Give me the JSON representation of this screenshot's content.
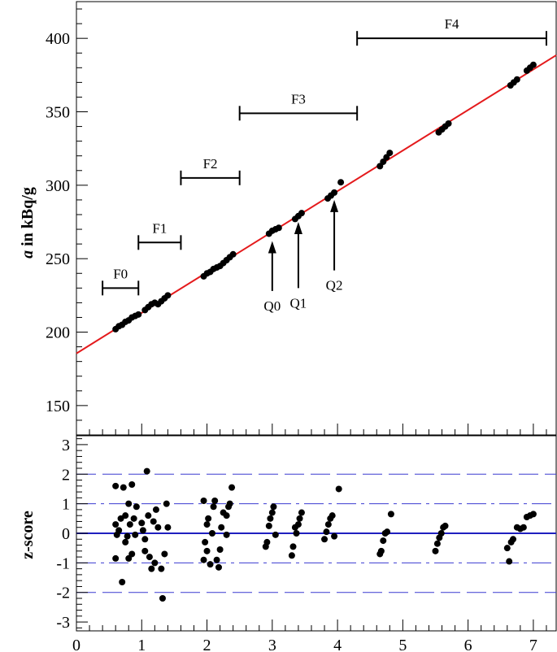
{
  "chart_data": [
    {
      "type": "scatter",
      "ylabel_italic": "a",
      "ylabel_rest": " in kBq/g",
      "xlim": [
        0,
        7.35
      ],
      "ylim": [
        130,
        425
      ],
      "yticks": [
        150,
        200,
        250,
        300,
        350,
        400
      ],
      "grid": false,
      "fit_line": {
        "color": "#e41a1c",
        "x": [
          0,
          7.35
        ],
        "y": [
          185.5,
          388.5
        ]
      },
      "ranges": [
        {
          "label": "F0",
          "x": [
            0.4,
            0.95
          ],
          "y": 230
        },
        {
          "label": "F1",
          "x": [
            0.95,
            1.6
          ],
          "y": 261
        },
        {
          "label": "F2",
          "x": [
            1.6,
            2.5
          ],
          "y": 305
        },
        {
          "label": "F3",
          "x": [
            2.5,
            4.3
          ],
          "y": 349
        },
        {
          "label": "F4",
          "x": [
            4.3,
            7.2
          ],
          "y": 400
        }
      ],
      "arrows": [
        {
          "label": "Q0",
          "x": 3.0,
          "y_tip": 262,
          "y_tail": 228
        },
        {
          "label": "Q1",
          "x": 3.4,
          "y_tip": 275,
          "y_tail": 230
        },
        {
          "label": "Q2",
          "x": 3.95,
          "y_tip": 290,
          "y_tail": 242
        }
      ],
      "points": {
        "x": [
          0.6,
          0.65,
          0.7,
          0.75,
          0.8,
          0.85,
          0.9,
          0.95,
          1.05,
          1.1,
          1.15,
          1.2,
          1.25,
          1.3,
          1.35,
          1.4,
          1.95,
          2.0,
          2.05,
          2.1,
          2.15,
          2.2,
          2.25,
          2.3,
          2.35,
          2.4,
          2.95,
          3.0,
          3.05,
          3.1,
          3.35,
          3.4,
          3.45,
          3.85,
          3.9,
          3.95,
          4.05,
          4.65,
          4.7,
          4.75,
          4.8,
          5.55,
          5.6,
          5.65,
          5.7,
          6.65,
          6.7,
          6.75,
          6.9,
          6.95,
          7.0
        ],
        "y": [
          202,
          204,
          205,
          207,
          208,
          210,
          211,
          212,
          215,
          217,
          219,
          220,
          219,
          221,
          223,
          225,
          238,
          240,
          241,
          243,
          244,
          245,
          247,
          249,
          251,
          253,
          267,
          269,
          270,
          271,
          277,
          279,
          281,
          291,
          293,
          295,
          302,
          313,
          316,
          319,
          322,
          336,
          338,
          340,
          342,
          368,
          370,
          372,
          378,
          380,
          382
        ]
      }
    },
    {
      "type": "scatter",
      "ylabel": "z-score",
      "xlim": [
        0,
        7.35
      ],
      "ylim": [
        -3.3,
        3.3
      ],
      "xticks": [
        0,
        1,
        2,
        3,
        4,
        5,
        6,
        7
      ],
      "yticks": [
        -3,
        -2,
        -1,
        0,
        1,
        2,
        3
      ],
      "reference_lines": [
        {
          "y": 0,
          "style": "solid",
          "color": "#1f1fbf"
        },
        {
          "y": 1,
          "style": "dashdot",
          "color": "#3a3ad0"
        },
        {
          "y": -1,
          "style": "dashdot",
          "color": "#3a3ad0"
        },
        {
          "y": 2,
          "style": "dashed",
          "color": "#3a3ad0"
        },
        {
          "y": -2,
          "style": "dashed",
          "color": "#3a3ad0"
        }
      ],
      "points": {
        "x": [
          0.6,
          0.6,
          0.6,
          0.62,
          0.65,
          0.68,
          0.7,
          0.72,
          0.75,
          0.75,
          0.78,
          0.8,
          0.8,
          0.82,
          0.85,
          0.85,
          0.88,
          0.9,
          0.92,
          1.0,
          1.02,
          1.05,
          1.05,
          1.08,
          1.1,
          1.12,
          1.15,
          1.18,
          1.2,
          1.22,
          1.25,
          1.3,
          1.32,
          1.35,
          1.38,
          1.4,
          1.95,
          1.95,
          1.97,
          2.0,
          2.0,
          2.02,
          2.05,
          2.08,
          2.1,
          2.12,
          2.15,
          2.18,
          2.2,
          2.22,
          2.25,
          2.3,
          2.3,
          2.33,
          2.35,
          2.38,
          2.9,
          2.92,
          2.95,
          2.97,
          3.0,
          3.02,
          3.05,
          3.3,
          3.32,
          3.35,
          3.37,
          3.4,
          3.42,
          3.45,
          3.8,
          3.83,
          3.86,
          3.89,
          3.92,
          3.95,
          4.02,
          4.65,
          4.67,
          4.7,
          4.73,
          4.76,
          4.82,
          5.5,
          5.53,
          5.56,
          5.59,
          5.62,
          5.65,
          6.6,
          6.63,
          6.66,
          6.69,
          6.75,
          6.8,
          6.85,
          6.9,
          6.95,
          7.0
        ],
        "y": [
          -0.85,
          0.3,
          1.6,
          -0.05,
          0.1,
          0.5,
          -1.65,
          1.55,
          -0.3,
          0.6,
          -0.1,
          1.0,
          -0.85,
          0.3,
          -0.7,
          1.65,
          0.5,
          -0.05,
          0.9,
          0.35,
          0.1,
          -0.2,
          -0.6,
          2.1,
          0.6,
          -0.8,
          -1.2,
          0.4,
          -1.0,
          0.8,
          0.2,
          -1.2,
          -2.2,
          -0.7,
          1.0,
          0.2,
          -0.9,
          1.1,
          -0.3,
          0.3,
          -0.6,
          0.5,
          -1.05,
          0.0,
          0.9,
          1.1,
          -0.9,
          -1.15,
          -0.55,
          0.2,
          0.7,
          0.6,
          -0.05,
          0.9,
          1.0,
          1.55,
          -0.45,
          -0.3,
          0.25,
          0.5,
          0.7,
          0.9,
          -0.05,
          -0.75,
          -0.45,
          0.2,
          0.0,
          0.3,
          0.5,
          0.7,
          -0.2,
          0.05,
          0.3,
          0.5,
          0.6,
          -0.1,
          1.5,
          -0.7,
          -0.6,
          -0.25,
          0.0,
          0.05,
          0.65,
          -0.6,
          -0.35,
          -0.15,
          0.0,
          0.2,
          0.25,
          -0.5,
          -0.95,
          -0.3,
          -0.2,
          0.2,
          0.15,
          0.2,
          0.55,
          0.6,
          0.65
        ]
      }
    }
  ]
}
